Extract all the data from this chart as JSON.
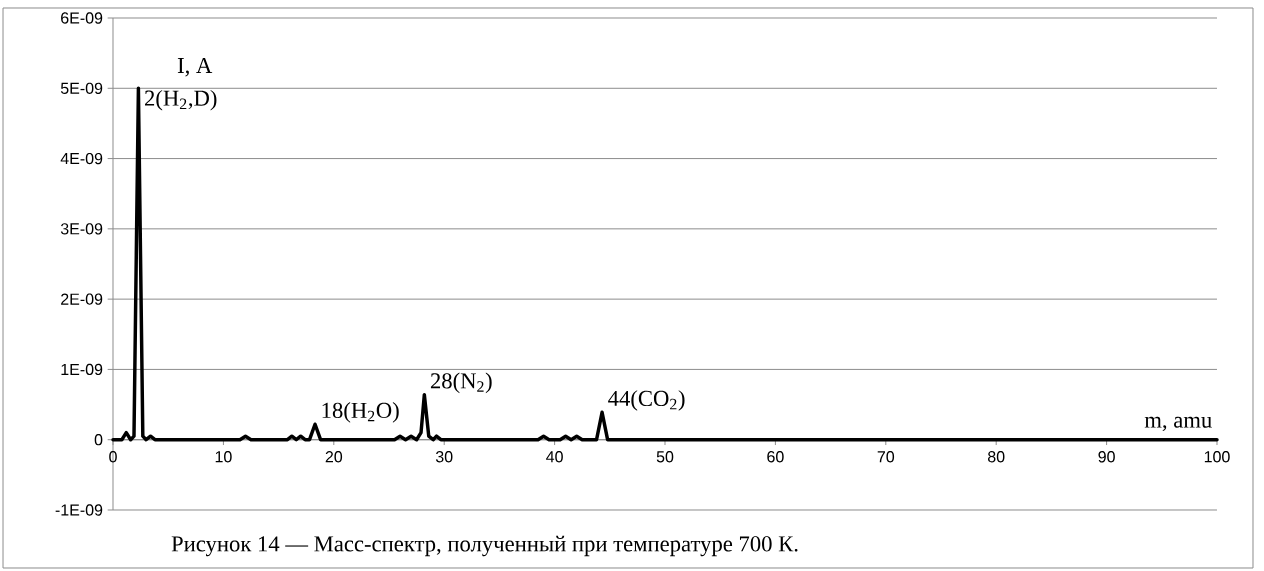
{
  "chart_data": {
    "type": "line",
    "xlabel": "m, amu",
    "ylabel": "I, A",
    "x": [
      0,
      0.8,
      1.2,
      1.6,
      1.9,
      2.3,
      2.7,
      3.0,
      3.4,
      3.8,
      11.5,
      12,
      12.5,
      14,
      14.5,
      15,
      15.8,
      16.2,
      16.6,
      17.0,
      17.4,
      17.8,
      18.3,
      18.8,
      25.5,
      26,
      26.5,
      27,
      27.5,
      27.9,
      28.2,
      28.6,
      29.0,
      29.3,
      29.7,
      38.5,
      39,
      39.5,
      40.5,
      41,
      41.5,
      42,
      42.5,
      43.8,
      44.3,
      44.8,
      45.2,
      45.6,
      100
    ],
    "values": [
      0,
      0,
      1e-10,
      0,
      5e-11,
      5e-09,
      5e-11,
      0,
      5e-11,
      0,
      0,
      5e-11,
      0,
      0,
      0,
      0,
      0,
      5e-11,
      0,
      5e-11,
      0,
      0,
      2.2e-10,
      0,
      0,
      5e-11,
      0,
      5e-11,
      0,
      1e-10,
      6.4e-10,
      5e-11,
      0,
      5e-11,
      0,
      0,
      5e-11,
      0,
      0,
      5e-11,
      0,
      5e-11,
      0,
      0,
      3.9e-10,
      0,
      0,
      0,
      0
    ],
    "color": "#000000",
    "marker": "none",
    "line_style": "solid",
    "grid": "y",
    "xlim": [
      0,
      100
    ],
    "xticks": [
      0,
      10,
      20,
      30,
      40,
      50,
      60,
      70,
      80,
      90,
      100
    ],
    "ylim": [
      -1e-09,
      6e-09
    ],
    "yticks": [
      {
        "value": -1e-09,
        "label": "-1E-09"
      },
      {
        "value": 0,
        "label": "0"
      },
      {
        "value": 1e-09,
        "label": "1E-09"
      },
      {
        "value": 2e-09,
        "label": "2E-09"
      },
      {
        "value": 3e-09,
        "label": "3E-09"
      },
      {
        "value": 4e-09,
        "label": "4E-09"
      },
      {
        "value": 5e-09,
        "label": "5E-09"
      },
      {
        "value": 6e-09,
        "label": "6E-09"
      }
    ],
    "annotations": [
      {
        "text": "2(H$_{2}$,D)",
        "x": 2.3,
        "y": 5e-09
      },
      {
        "text": "18(H$_{2}$O)",
        "x": 18.3,
        "y": 2.2e-10
      },
      {
        "text": "28(N$_{2}$)",
        "x": 28.2,
        "y": 6.4e-10
      },
      {
        "text": "44(CO$_{2}$)",
        "x": 44.3,
        "y": 3.9e-10
      },
      "Рисунок 14 — Масс-спектр, полученный при температуре 700 К."
    ]
  }
}
